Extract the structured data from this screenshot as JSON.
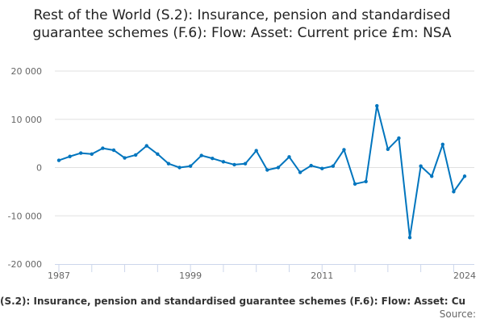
{
  "chart_data": {
    "type": "line",
    "title": "Rest of the World (S.2): Insurance, pension and standardised guarantee schemes (F.6): Flow: Asset: Current price £m: NSA",
    "x": [
      1987,
      1988,
      1989,
      1990,
      1991,
      1992,
      1993,
      1994,
      1995,
      1996,
      1997,
      1998,
      1999,
      2000,
      2001,
      2002,
      2003,
      2004,
      2005,
      2006,
      2007,
      2008,
      2009,
      2010,
      2011,
      2012,
      2013,
      2014,
      2015,
      2016,
      2017,
      2018,
      2019,
      2020,
      2021,
      2022,
      2023,
      2024
    ],
    "series": [
      {
        "values": [
          1500,
          2300,
          3000,
          2800,
          4000,
          3600,
          2000,
          2600,
          4500,
          2800,
          800,
          0,
          300,
          2500,
          1900,
          1200,
          600,
          800,
          3500,
          -500,
          0,
          2200,
          -1000,
          400,
          -200,
          300,
          3700,
          -3400,
          -2900,
          12800,
          3800,
          6100,
          -14500,
          300,
          -1800,
          4800,
          -5000,
          -1800
        ],
        "color": "#0075be"
      }
    ],
    "ylim": [
      -20000,
      20000
    ],
    "yticks": [
      20000,
      10000,
      0,
      -10000,
      -20000
    ],
    "ytick_labels": [
      "20 000",
      "10 000",
      "0",
      "-10 000",
      "-20 000"
    ],
    "xtick_labels": [
      "1987",
      "1999",
      "2011",
      "2024"
    ],
    "grid": true
  },
  "footer": {
    "text": "(S.2): Insurance, pension and standardised guarantee schemes (F.6): Flow: Asset: Cu",
    "source": "Source:"
  }
}
